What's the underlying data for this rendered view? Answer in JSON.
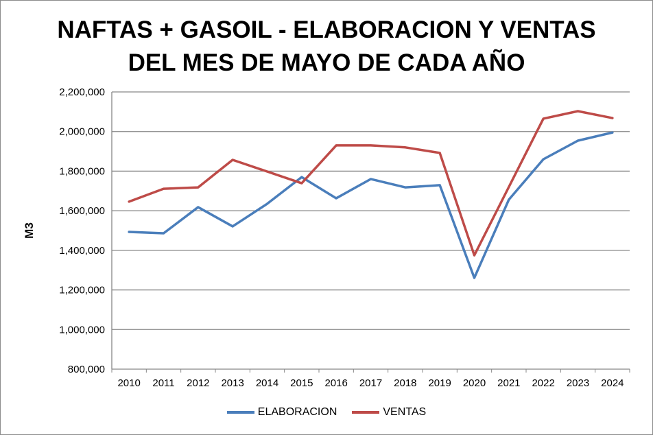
{
  "chart_data": {
    "type": "line",
    "title_lines": [
      "NAFTAS + GASOIL - ELABORACION Y VENTAS",
      "DEL MES DE MAYO DE CADA AÑO"
    ],
    "xlabel": "",
    "ylabel": "M3",
    "ylim": [
      800000,
      2200000
    ],
    "yticks": [
      800000,
      1000000,
      1200000,
      1400000,
      1600000,
      1800000,
      2000000,
      2200000
    ],
    "ytick_labels": [
      "800,000",
      "1,000,000",
      "1,200,000",
      "1,400,000",
      "1,600,000",
      "1,800,000",
      "2,000,000",
      "2,200,000"
    ],
    "grid": "horizontal",
    "legend": "bottom",
    "categories": [
      "2010",
      "2011",
      "2012",
      "2013",
      "2014",
      "2015",
      "2016",
      "2017",
      "2018",
      "2019",
      "2020",
      "2021",
      "2022",
      "2023",
      "2024"
    ],
    "series": [
      {
        "name": "ELABORACION",
        "color": "#4a7ebb",
        "values": [
          1493000,
          1486000,
          1618000,
          1521000,
          1635000,
          1770000,
          1663000,
          1760000,
          1718000,
          1729000,
          1261000,
          1656000,
          1860000,
          1954000,
          1995000
        ]
      },
      {
        "name": "VENTAS",
        "color": "#be4b48",
        "values": [
          1646000,
          1711000,
          1718000,
          1857000,
          1798000,
          1739000,
          1930000,
          1930000,
          1920000,
          1892000,
          1375000,
          1720000,
          2065000,
          2103000,
          2068000
        ]
      }
    ]
  }
}
